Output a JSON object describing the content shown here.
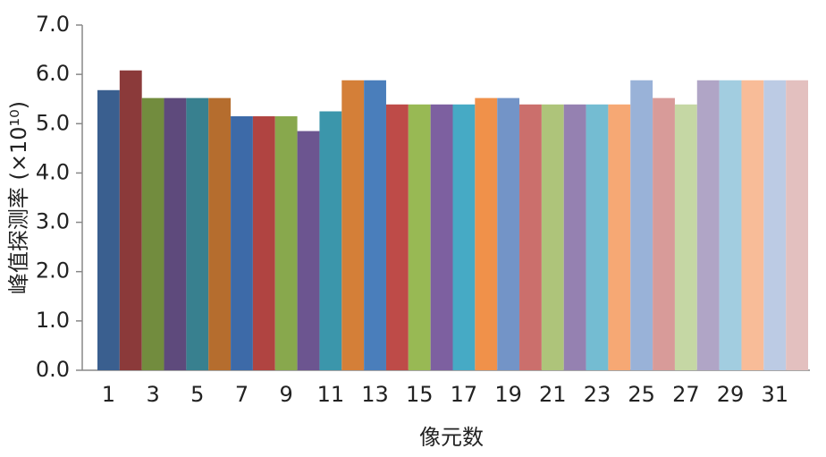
{
  "chart_data": {
    "type": "bar",
    "y_label": "峰值探测率 (×10¹⁰)",
    "x_label": "像元数",
    "categories": [
      "1",
      null,
      "3",
      null,
      "5",
      null,
      "7",
      null,
      "9",
      null,
      "11",
      null,
      "13",
      null,
      "15",
      null,
      "17",
      null,
      "19",
      null,
      "21",
      null,
      "23",
      null,
      "25",
      null,
      "27",
      null,
      "29",
      null,
      "31",
      null
    ],
    "values": [
      5.68,
      6.08,
      5.52,
      5.52,
      5.52,
      5.52,
      5.15,
      5.15,
      5.15,
      4.85,
      5.25,
      5.88,
      5.88,
      5.39,
      5.39,
      5.39,
      5.39,
      5.52,
      5.52,
      5.39,
      5.39,
      5.39,
      5.39,
      5.39,
      5.88,
      5.52,
      5.39,
      5.88,
      5.88,
      5.88,
      5.88,
      5.88
    ],
    "colors": [
      "#3a5f8f",
      "#8b3a3a",
      "#728c3e",
      "#5e4a7c",
      "#38808f",
      "#b56d2e",
      "#3d6aa8",
      "#b04441",
      "#88a84d",
      "#6c5590",
      "#3b96ab",
      "#d47f38",
      "#4a7ebb",
      "#be4b48",
      "#98b954",
      "#7d60a0",
      "#46aac5",
      "#f0914a",
      "#7394c7",
      "#cb6f6c",
      "#aec47a",
      "#9581b1",
      "#74bcd2",
      "#f6a874",
      "#99b2d8",
      "#d89b99",
      "#c5d7a4",
      "#b0a5c6",
      "#a2cde0",
      "#f8bc98",
      "#bccbe4",
      "#e3c0bf"
    ],
    "ylim": [
      0,
      7
    ],
    "yticks": [
      {
        "value": 0,
        "label": "0.0"
      },
      {
        "value": 1,
        "label": "1.0"
      },
      {
        "value": 2,
        "label": "2.0"
      },
      {
        "value": 3,
        "label": "3.0"
      },
      {
        "value": 4,
        "label": "4.0"
      },
      {
        "value": 5,
        "label": "5.0"
      },
      {
        "value": 6,
        "label": "6.0"
      },
      {
        "value": 7,
        "label": "7.0"
      }
    ],
    "grid": false
  }
}
